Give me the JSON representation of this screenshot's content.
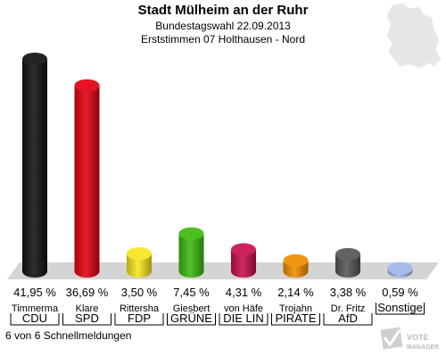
{
  "header": {
    "title": "Stadt Mülheim an der Ruhr",
    "subtitle": "Bundestagswahl 22.09.2013",
    "subtitle2": "Erststimmen 07 Holthausen - Nord"
  },
  "footer": {
    "text": "6 von 6 Schnellmeldungen"
  },
  "logo": {
    "text": "VOTE MANAGER"
  },
  "chart_data": {
    "type": "bar",
    "title": "Stadt Mülheim an der Ruhr",
    "categories": [
      "CDU",
      "SPD",
      "FDP",
      "GRÜNE",
      "DIE LIN",
      "PIRATE",
      "AfD",
      "Sonstige"
    ],
    "candidates": [
      "Timmerma",
      "Klare",
      "Rittersha",
      "Giesbert",
      "von Häfe",
      "Trojahn",
      "Dr. Fritz",
      ""
    ],
    "values": [
      41.95,
      36.69,
      3.5,
      7.45,
      4.31,
      2.14,
      3.38,
      0.59
    ],
    "value_labels": [
      "41,95 %",
      "36,69 %",
      "3,50 %",
      "7,45 %",
      "4,31 %",
      "2,14 %",
      "3,38 %",
      "0,59 %"
    ],
    "colors": [
      "#111111",
      "#e4000f",
      "#f7e51d",
      "#3cba0f",
      "#c8104f",
      "#f08d00",
      "#555555",
      "#9fb6e6"
    ],
    "ylim": [
      0,
      41.95
    ],
    "grid": false,
    "legend": "none"
  }
}
